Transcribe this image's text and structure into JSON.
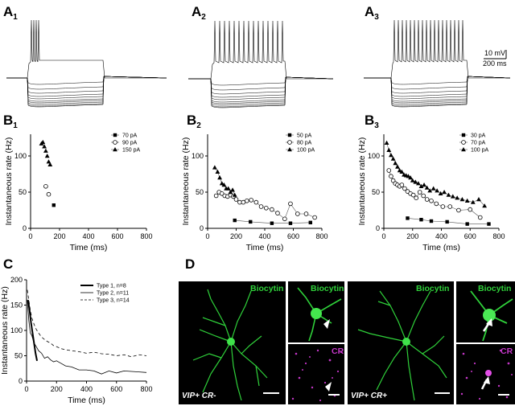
{
  "panels": {
    "a1": {
      "letter": "A",
      "sub": "1"
    },
    "a2": {
      "letter": "A",
      "sub": "2"
    },
    "a3": {
      "letter": "A",
      "sub": "3"
    },
    "b1": {
      "letter": "B",
      "sub": "1"
    },
    "b2": {
      "letter": "B",
      "sub": "2"
    },
    "b3": {
      "letter": "B",
      "sub": "3"
    },
    "c": {
      "letter": "C"
    },
    "d": {
      "letter": "D"
    }
  },
  "scale_bar": {
    "voltage": "10 mV",
    "time": "200 ms"
  },
  "micrographs": {
    "label_biocytin": "Biocytin",
    "label_cr": "CR",
    "tag_left": "VIP+ CR-",
    "tag_right": "VIP+ CR+"
  },
  "chart_data": [
    {
      "id": "b1",
      "type": "scatter",
      "xlabel": "Time (ms)",
      "ylabel": "Instantaneous rate (Hz)",
      "xlim": [
        0,
        800
      ],
      "ylim": [
        0,
        130
      ],
      "xticks": [
        0,
        200,
        400,
        600,
        800
      ],
      "yticks": [
        0,
        50,
        100
      ],
      "legend_position": "top-right",
      "series": [
        {
          "name": "70 pA",
          "marker": "square",
          "x": [
            160
          ],
          "y": [
            32
          ]
        },
        {
          "name": "90 pA",
          "marker": "circle-open",
          "x": [
            105,
            125
          ],
          "y": [
            58,
            47
          ]
        },
        {
          "name": "150 pA",
          "marker": "triangle",
          "x": [
            75,
            85,
            95,
            105,
            115,
            125,
            135
          ],
          "y": [
            117,
            119,
            113,
            107,
            100,
            92,
            88
          ]
        }
      ]
    },
    {
      "id": "b2",
      "type": "line",
      "xlabel": "Time (ms)",
      "ylabel": "Instantaneous rate (Hz)",
      "xlim": [
        0,
        800
      ],
      "ylim": [
        0,
        130
      ],
      "xticks": [
        0,
        200,
        400,
        600,
        800
      ],
      "yticks": [
        0,
        50,
        100
      ],
      "legend_position": "top-right",
      "series": [
        {
          "name": "50 pA",
          "marker": "square",
          "x": [
            190,
            300,
            450,
            580,
            720
          ],
          "y": [
            11,
            9,
            7,
            7,
            8
          ]
        },
        {
          "name": "80 pA",
          "marker": "circle-open",
          "x": [
            60,
            80,
            100,
            120,
            140,
            160,
            180,
            200,
            225,
            250,
            275,
            305,
            340,
            375,
            410,
            450,
            490,
            540,
            580,
            630,
            690,
            750
          ],
          "y": [
            45,
            50,
            48,
            45,
            44,
            46,
            44,
            40,
            36,
            36,
            38,
            39,
            36,
            30,
            28,
            26,
            21,
            13,
            34,
            20,
            20,
            15
          ]
        },
        {
          "name": "100 pA",
          "marker": "triangle",
          "x": [
            50,
            70,
            85,
            100,
            115,
            130,
            145,
            160,
            175,
            190
          ],
          "y": [
            84,
            78,
            70,
            62,
            60,
            55,
            55,
            50,
            53,
            46
          ]
        }
      ]
    },
    {
      "id": "b3",
      "type": "line",
      "xlabel": "Time (ms)",
      "ylabel": "Instantaneous rate (Hz)",
      "xlim": [
        0,
        800
      ],
      "ylim": [
        0,
        130
      ],
      "xticks": [
        0,
        200,
        400,
        600,
        800
      ],
      "yticks": [
        0,
        50,
        100
      ],
      "legend_position": "top-right",
      "series": [
        {
          "name": "30 pA",
          "marker": "square",
          "x": [
            165,
            260,
            330,
            440,
            580,
            730
          ],
          "y": [
            14,
            12,
            10,
            9,
            6,
            6
          ]
        },
        {
          "name": "70 pA",
          "marker": "circle-open",
          "x": [
            35,
            50,
            65,
            80,
            95,
            110,
            125,
            145,
            165,
            185,
            205,
            225,
            250,
            275,
            300,
            330,
            365,
            410,
            460,
            520,
            600,
            670
          ],
          "y": [
            80,
            72,
            66,
            62,
            60,
            58,
            60,
            55,
            51,
            48,
            46,
            42,
            50,
            45,
            40,
            38,
            34,
            30,
            30,
            25,
            26,
            15
          ]
        },
        {
          "name": "100 pA",
          "marker": "triangle",
          "x": [
            20,
            35,
            50,
            65,
            80,
            95,
            110,
            125,
            140,
            155,
            170,
            185,
            200,
            220,
            240,
            260,
            280,
            300,
            320,
            345,
            370,
            395,
            420,
            450,
            480,
            510,
            545,
            580,
            620,
            660,
            700
          ],
          "y": [
            118,
            108,
            101,
            96,
            90,
            85,
            80,
            78,
            74,
            73,
            72,
            70,
            66,
            64,
            62,
            58,
            60,
            56,
            52,
            55,
            52,
            48,
            50,
            46,
            44,
            42,
            40,
            38,
            36,
            40,
            31
          ]
        }
      ]
    },
    {
      "id": "c",
      "type": "line",
      "xlabel": "Time (ms)",
      "ylabel": "Instantaneous rate (Hz)",
      "xlim": [
        0,
        800
      ],
      "ylim": [
        0,
        200
      ],
      "xticks": [
        0,
        200,
        400,
        600,
        800
      ],
      "yticks": [
        0,
        50,
        100,
        150,
        200
      ],
      "legend_position": "top-right",
      "series": [
        {
          "name": "Type 1,  n=8",
          "style": "thick-solid",
          "x": [
            10,
            20,
            30,
            40,
            50,
            60,
            70
          ],
          "y": [
            160,
            140,
            115,
            95,
            75,
            55,
            40
          ]
        },
        {
          "name": "Type 2,  n=11",
          "style": "thin-solid",
          "x": [
            5,
            15,
            25,
            35,
            50,
            65,
            80,
            100,
            120,
            140,
            160,
            180,
            200,
            230,
            260,
            300,
            350,
            400,
            450,
            500,
            550,
            600,
            650,
            700,
            750,
            800
          ],
          "y": [
            160,
            120,
            95,
            90,
            75,
            68,
            60,
            55,
            45,
            48,
            42,
            38,
            40,
            35,
            30,
            28,
            22,
            22,
            20,
            14,
            20,
            16,
            20,
            19,
            18,
            17
          ]
        },
        {
          "name": "Type 3,  n=14",
          "style": "dashed",
          "x": [
            5,
            15,
            25,
            35,
            50,
            65,
            80,
            100,
            120,
            140,
            160,
            180,
            200,
            230,
            260,
            300,
            350,
            400,
            450,
            500,
            550,
            600,
            650,
            700,
            750,
            800
          ],
          "y": [
            180,
            160,
            140,
            125,
            112,
            102,
            95,
            87,
            82,
            78,
            75,
            70,
            68,
            64,
            62,
            60,
            58,
            55,
            57,
            54,
            53,
            50,
            52,
            48,
            52,
            50
          ]
        }
      ]
    }
  ]
}
